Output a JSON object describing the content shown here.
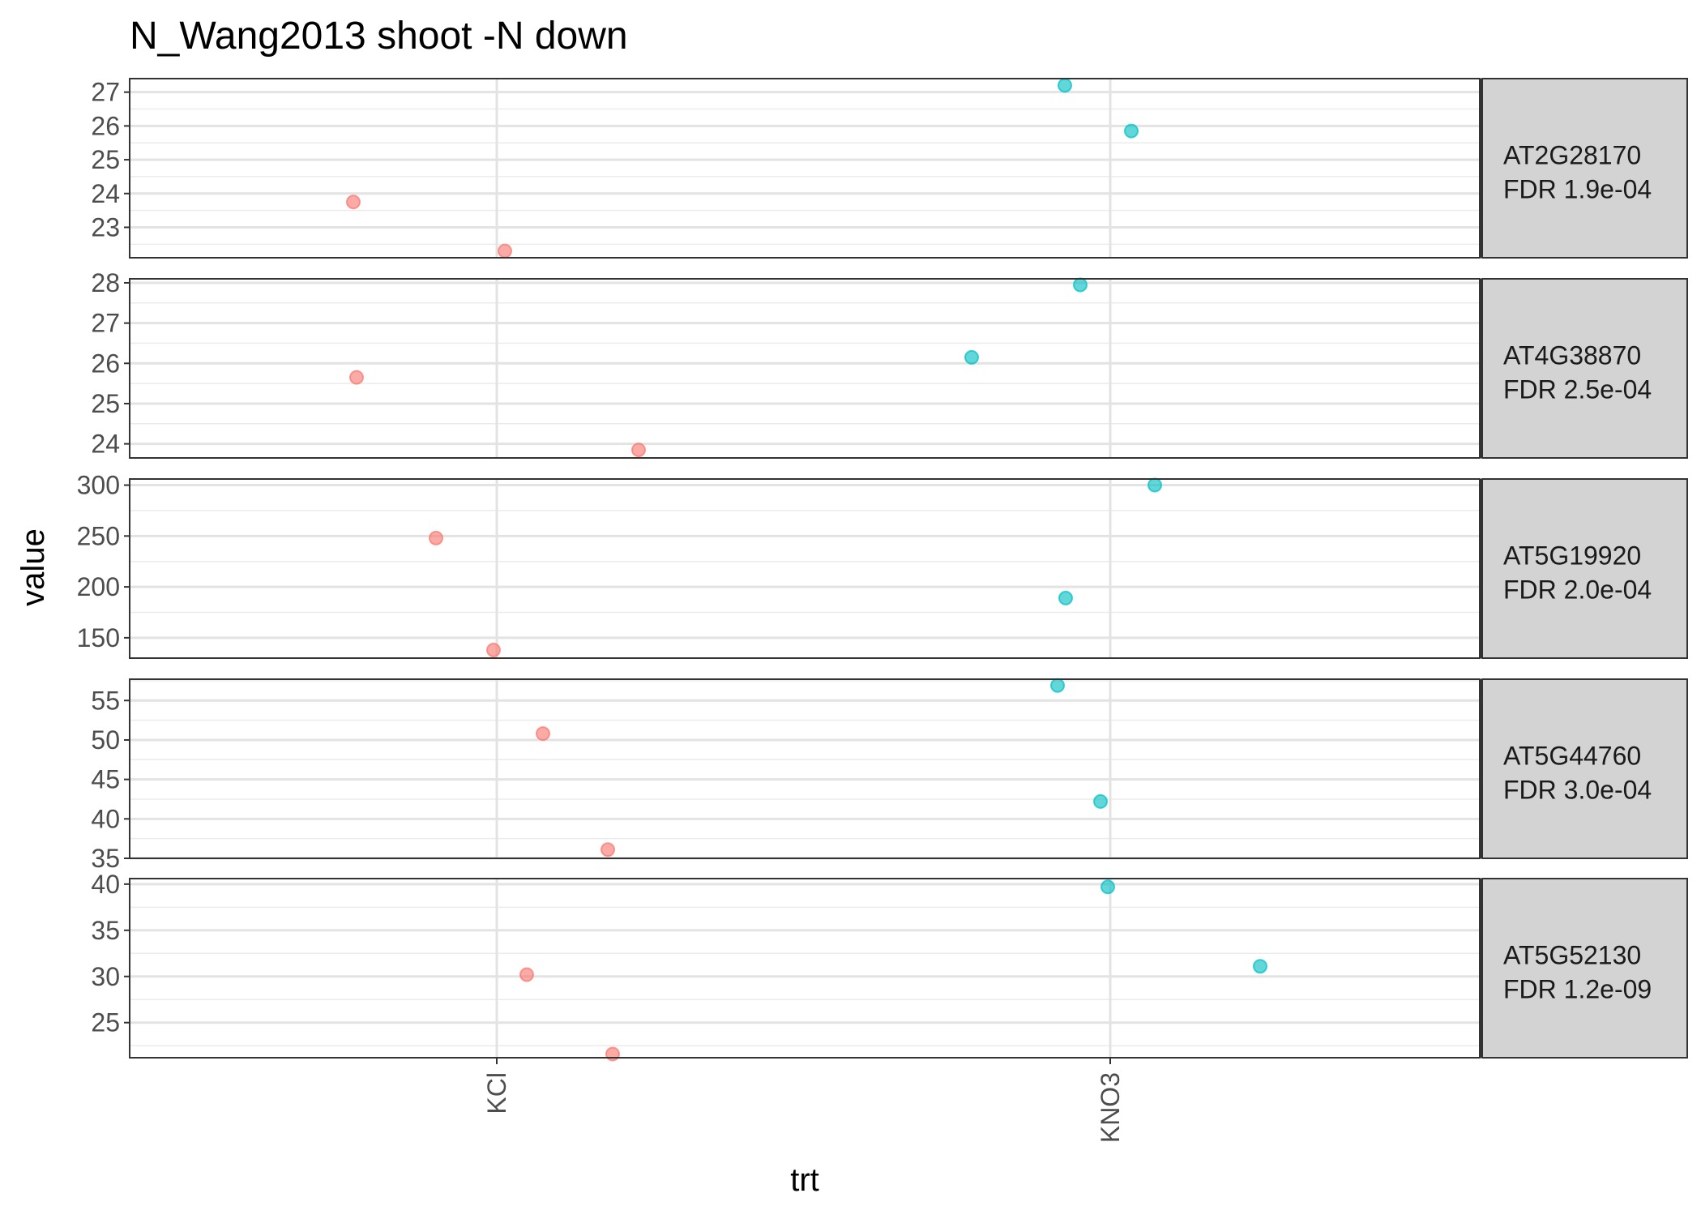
{
  "chart_data": {
    "type": "scatter",
    "title": "N_Wang2013 shoot -N down",
    "xlabel": "trt",
    "ylabel": "value",
    "categories": [
      "KCl",
      "KNO3"
    ],
    "series_colors": {
      "KCl": "#F8766D",
      "KNO3": "#00BFC4"
    },
    "grid": true,
    "legend": "none",
    "facets": [
      {
        "strip": [
          "AT2G28170",
          "FDR 1.9e-04"
        ],
        "ylim": [
          22.1,
          27.4
        ],
        "yticks": [
          23,
          24,
          25,
          26,
          27
        ],
        "points": [
          {
            "x": "KCl",
            "y": 23.75
          },
          {
            "x": "KCl",
            "y": 22.3
          },
          {
            "x": "KNO3",
            "y": 27.2
          },
          {
            "x": "KNO3",
            "y": 25.85
          }
        ]
      },
      {
        "strip": [
          "AT4G38870",
          "FDR 2.5e-04"
        ],
        "ylim": [
          23.65,
          28.1
        ],
        "yticks": [
          24,
          25,
          26,
          27,
          28
        ],
        "points": [
          {
            "x": "KCl",
            "y": 25.65
          },
          {
            "x": "KCl",
            "y": 23.85
          },
          {
            "x": "KNO3",
            "y": 27.95
          },
          {
            "x": "KNO3",
            "y": 26.15
          }
        ]
      },
      {
        "strip": [
          "AT5G19920",
          "FDR 2.0e-04"
        ],
        "ylim": [
          130,
          306
        ],
        "yticks": [
          150,
          200,
          250,
          300
        ],
        "points": [
          {
            "x": "KCl",
            "y": 248
          },
          {
            "x": "KCl",
            "y": 138
          },
          {
            "x": "KNO3",
            "y": 300
          },
          {
            "x": "KNO3",
            "y": 189
          }
        ]
      },
      {
        "strip": [
          "AT5G44760",
          "FDR 3.0e-04"
        ],
        "ylim": [
          35,
          57.7
        ],
        "yticks": [
          35,
          40,
          45,
          50,
          55
        ],
        "points": [
          {
            "x": "KCl",
            "y": 50.8
          },
          {
            "x": "KCl",
            "y": 36.1
          },
          {
            "x": "KNO3",
            "y": 56.9
          },
          {
            "x": "KNO3",
            "y": 42.2
          }
        ]
      },
      {
        "strip": [
          "AT5G52130",
          "FDR 1.2e-09"
        ],
        "ylim": [
          21.2,
          40.6
        ],
        "yticks": [
          25,
          30,
          35,
          40
        ],
        "points": [
          {
            "x": "KCl",
            "y": 30.2
          },
          {
            "x": "KCl",
            "y": 21.6
          },
          {
            "x": "KNO3",
            "y": 39.7
          },
          {
            "x": "KNO3",
            "y": 31.1
          }
        ]
      }
    ]
  }
}
